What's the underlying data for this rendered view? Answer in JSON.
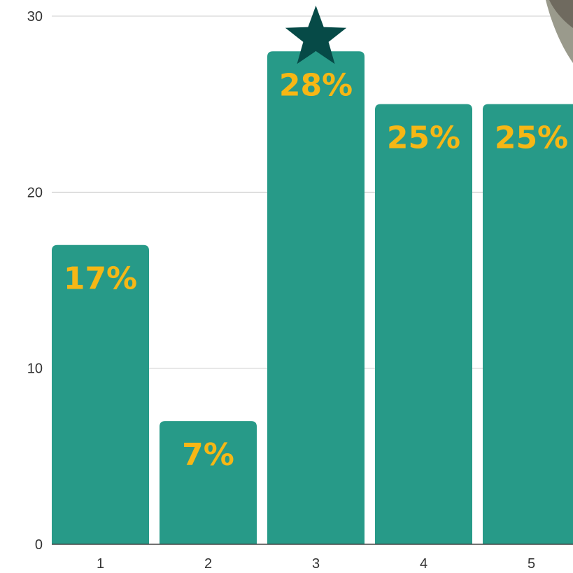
{
  "chart_data": {
    "type": "bar",
    "categories": [
      "1",
      "2",
      "3",
      "4",
      "5"
    ],
    "values": [
      17,
      7,
      28,
      25,
      25
    ],
    "data_labels": [
      "17%",
      "7%",
      "28%",
      "25%",
      "25%"
    ],
    "yticks": [
      "0",
      "10",
      "20",
      "30"
    ],
    "ylim": [
      0,
      30
    ],
    "grid": true,
    "highlight_category": "3",
    "colors": {
      "bar": "#279A88",
      "label": "#F6B715",
      "star": "#064A47",
      "grid": "#CCCCCC",
      "axis": "#444444"
    }
  }
}
